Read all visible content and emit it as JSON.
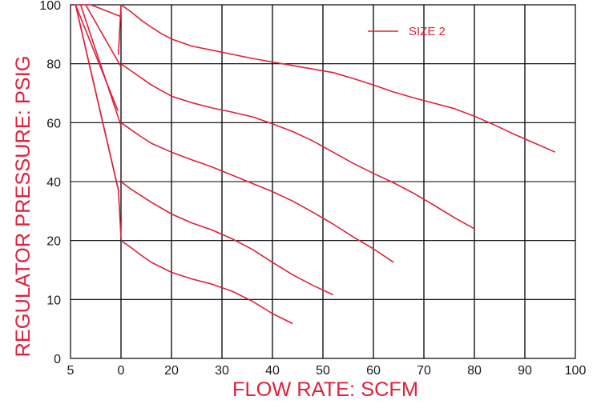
{
  "chart_data": {
    "type": "line",
    "title": "",
    "xlabel": "FLOW RATE: SCFM",
    "ylabel": "REGULATOR PRESSURE: PSIG",
    "legend": {
      "label": "SIZE 2",
      "placement": "top-right"
    },
    "x_ticks": [
      "5",
      "0",
      "20",
      "30",
      "40",
      "50",
      "60",
      "70",
      "80",
      "90",
      "100"
    ],
    "y_ticks": [
      "0",
      "10",
      "20",
      "40",
      "60",
      "80",
      "100"
    ],
    "x_tick_positions": [
      -10,
      0,
      10,
      20,
      30,
      40,
      50,
      60,
      70,
      80,
      90
    ],
    "y_tick_positions": [
      0,
      1,
      2,
      3,
      4,
      5,
      6
    ],
    "xlim": [
      -10,
      90
    ],
    "ylim": [
      0,
      6
    ],
    "grid": true,
    "color": "#e0203c",
    "series": [
      {
        "values_x": [
          -6,
          -7,
          -8,
          -9,
          -7.6,
          -6.2,
          -4.8,
          -3.4,
          -2,
          -0.6,
          0,
          2,
          4,
          6,
          8,
          10,
          14,
          18,
          22,
          26,
          30,
          34,
          38,
          42,
          46,
          50,
          54,
          58,
          62,
          66,
          70,
          74,
          78,
          82,
          86
        ],
        "values_y": [
          6,
          6,
          6,
          6,
          5.7,
          5.4,
          5.1,
          4.8,
          4.5,
          4.2,
          6,
          5.88,
          5.74,
          5.62,
          5.51,
          5.42,
          5.3,
          5.23,
          5.16,
          5.09,
          5.03,
          4.97,
          4.91,
          4.85,
          4.75,
          4.64,
          4.52,
          4.42,
          4.33,
          4.24,
          4.11,
          3.96,
          3.8,
          3.65,
          3.5
        ]
      },
      {
        "values_x": [
          0,
          2,
          4,
          6,
          10,
          14,
          18,
          22,
          26,
          30,
          34,
          38,
          42,
          46,
          50,
          54,
          58,
          62,
          66,
          70
        ],
        "values_y": [
          5,
          4.88,
          4.76,
          4.64,
          4.45,
          4.34,
          4.25,
          4.18,
          4.1,
          3.98,
          3.85,
          3.69,
          3.5,
          3.31,
          3.14,
          2.98,
          2.8,
          2.6,
          2.39,
          2.2
        ]
      },
      {
        "values_x": [
          0,
          2,
          4,
          6,
          10,
          14,
          18,
          22,
          26,
          30,
          34,
          38,
          42,
          46,
          50,
          54
        ],
        "values_y": [
          4,
          3.88,
          3.76,
          3.65,
          3.5,
          3.37,
          3.25,
          3.11,
          2.97,
          2.83,
          2.67,
          2.48,
          2.28,
          2.06,
          1.86,
          1.63
        ]
      },
      {
        "values_x": [
          0,
          2,
          4,
          6,
          10,
          14,
          18,
          22,
          26,
          30,
          34,
          38,
          42
        ],
        "values_y": [
          3,
          2.87,
          2.76,
          2.65,
          2.45,
          2.3,
          2.18,
          2.03,
          1.85,
          1.63,
          1.42,
          1.24,
          1.08
        ]
      },
      {
        "values_x": [
          0,
          2,
          4,
          6,
          10,
          14,
          18,
          22,
          26,
          30,
          34
        ],
        "values_y": [
          2,
          1.88,
          1.75,
          1.63,
          1.46,
          1.35,
          1.26,
          1.14,
          0.97,
          0.76,
          0.59
        ]
      },
      {
        "values_x": [
          -9,
          -0.5,
          0,
          0,
          -0.5
        ],
        "values_y": [
          6,
          2.85,
          2.05,
          6,
          5.15
        ]
      }
    ]
  }
}
